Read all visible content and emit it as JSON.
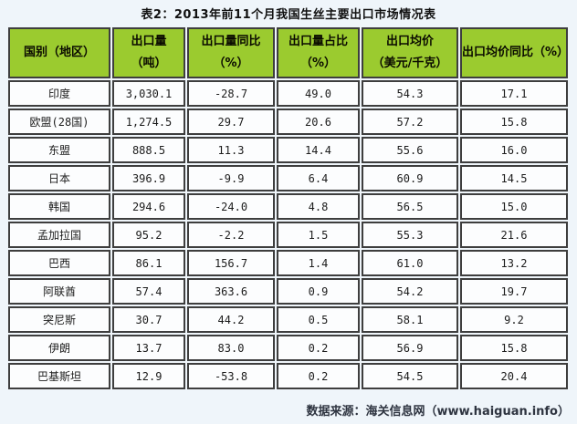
{
  "title": "表2：2013年前11个月我国生丝主要出口市场情况表",
  "source_note": "数据来源：海关信息网（www.haiguan.info）",
  "colors": {
    "page_bg": "#EFF5FA",
    "header_bg": "#9BCB2F",
    "cell_bg": "#FCFDFE",
    "grid_border": "#3E3E3E",
    "header_text": "#0A0A00",
    "cell_text": "#1C1C1C",
    "source_text": "#2E3440"
  },
  "table": {
    "headers": [
      {
        "line1": "国别（地区）",
        "line2": ""
      },
      {
        "line1": "出口量",
        "line2": "（吨）"
      },
      {
        "line1": "出口量同比",
        "line2": "（%）"
      },
      {
        "line1": "出口量占比",
        "line2": "（%）"
      },
      {
        "line1": "出口均价",
        "line2": "（美元/千克）"
      },
      {
        "line1": "出口均价同比（%）",
        "line2": ""
      }
    ],
    "rows": [
      {
        "country": "印度",
        "export_volume": "3,030.1",
        "volume_yoy": "-28.7",
        "volume_share": "49.0",
        "avg_price": "54.3",
        "price_yoy": "17.1"
      },
      {
        "country": "欧盟(28国)",
        "export_volume": "1,274.5",
        "volume_yoy": "29.7",
        "volume_share": "20.6",
        "avg_price": "57.2",
        "price_yoy": "15.8"
      },
      {
        "country": "东盟",
        "export_volume": "888.5",
        "volume_yoy": "11.3",
        "volume_share": "14.4",
        "avg_price": "55.6",
        "price_yoy": "16.0"
      },
      {
        "country": "日本",
        "export_volume": "396.9",
        "volume_yoy": "-9.9",
        "volume_share": "6.4",
        "avg_price": "60.9",
        "price_yoy": "14.5"
      },
      {
        "country": "韩国",
        "export_volume": "294.6",
        "volume_yoy": "-24.0",
        "volume_share": "4.8",
        "avg_price": "56.5",
        "price_yoy": "15.0"
      },
      {
        "country": "孟加拉国",
        "export_volume": "95.2",
        "volume_yoy": "-2.2",
        "volume_share": "1.5",
        "avg_price": "55.3",
        "price_yoy": "21.6"
      },
      {
        "country": "巴西",
        "export_volume": "86.1",
        "volume_yoy": "156.7",
        "volume_share": "1.4",
        "avg_price": "61.0",
        "price_yoy": "13.2"
      },
      {
        "country": "阿联酋",
        "export_volume": "57.4",
        "volume_yoy": "363.6",
        "volume_share": "0.9",
        "avg_price": "54.2",
        "price_yoy": "19.7"
      },
      {
        "country": "突尼斯",
        "export_volume": "30.7",
        "volume_yoy": "44.2",
        "volume_share": "0.5",
        "avg_price": "58.1",
        "price_yoy": "9.2"
      },
      {
        "country": "伊朗",
        "export_volume": "13.7",
        "volume_yoy": "83.0",
        "volume_share": "0.2",
        "avg_price": "56.9",
        "price_yoy": "15.8"
      },
      {
        "country": "巴基斯坦",
        "export_volume": "12.9",
        "volume_yoy": "-53.8",
        "volume_share": "0.2",
        "avg_price": "54.5",
        "price_yoy": "20.4"
      }
    ]
  }
}
